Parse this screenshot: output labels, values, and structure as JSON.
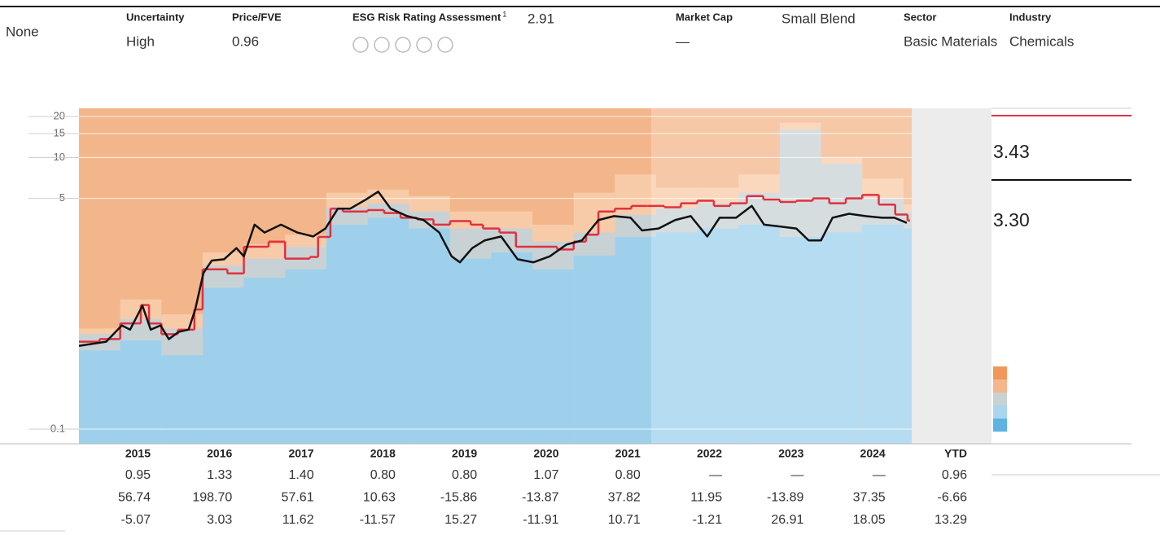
{
  "header": {
    "left": "None",
    "fields": [
      {
        "label": "Uncertainty",
        "value": "High"
      },
      {
        "label": "Price/FVE",
        "value": "0.96"
      },
      {
        "label": "ESG Risk Rating Assessment",
        "sup": "1",
        "aside": "2.91"
      },
      {
        "label": "Market Cap",
        "value": "—",
        "aside": "Small Blend"
      },
      {
        "label": "Sector",
        "value": "Basic Materials"
      },
      {
        "label": "Industry",
        "value": "Chemicals"
      }
    ]
  },
  "chart_data": {
    "type": "line",
    "log_scale": true,
    "xlim": [
      2015,
      2025.1
    ],
    "ylim": [
      0.078,
      23
    ],
    "yticks": [
      0.1,
      5,
      10,
      15,
      20
    ],
    "grid": true,
    "series": [
      {
        "kind": "area",
        "color": "#f8cba8",
        "x": [
          2015,
          2015.5,
          2016,
          2016.5,
          2017,
          2017.5,
          2018,
          2018.5,
          2019,
          2019.5,
          2020,
          2020.5,
          2021,
          2021.5,
          2022,
          2022.5,
          2023,
          2023.5,
          2024,
          2024.5,
          2025
        ],
        "values": [
          0.55,
          0.9,
          0.7,
          2.0,
          2.3,
          2.7,
          5.5,
          5.8,
          5.2,
          4.0,
          4.0,
          3.2,
          5.5,
          7.5,
          6.0,
          6.0,
          7.5,
          18,
          10,
          7,
          4.5
        ]
      },
      {
        "kind": "area",
        "color": "#c8d2d5",
        "x": [
          2015,
          2015.5,
          2016,
          2016.5,
          2017,
          2017.5,
          2018,
          2018.5,
          2019,
          2019.5,
          2020,
          2020.5,
          2021,
          2021.5,
          2022,
          2022.5,
          2023,
          2023.5,
          2024,
          2024.5,
          2025
        ],
        "values": [
          0.5,
          0.65,
          0.55,
          1.6,
          1.8,
          2.2,
          4.3,
          4.6,
          4.0,
          3.0,
          3.0,
          2.4,
          2.8,
          3.8,
          4.2,
          4.6,
          5.5,
          16,
          9,
          5,
          4.0
        ]
      },
      {
        "kind": "area",
        "color": "#9ed0ec",
        "x": [
          2015,
          2015.5,
          2016,
          2016.5,
          2017,
          2017.5,
          2018,
          2018.5,
          2019,
          2019.5,
          2020,
          2020.5,
          2021,
          2021.5,
          2022,
          2022.5,
          2023,
          2023.5,
          2024,
          2024.5,
          2025
        ],
        "values": [
          0.38,
          0.45,
          0.35,
          1.1,
          1.3,
          1.5,
          3.2,
          3.6,
          3.0,
          1.8,
          2.0,
          1.5,
          1.9,
          2.6,
          2.8,
          3.0,
          3.2,
          2.6,
          2.8,
          3.2,
          3.0
        ]
      },
      {
        "kind": "step",
        "color": "#e0313f",
        "end_label": "3.43",
        "x": [
          2015,
          2015.25,
          2015.5,
          2015.75,
          2015.85,
          2016,
          2016.2,
          2016.4,
          2016.5,
          2016.8,
          2017,
          2017.3,
          2017.5,
          2017.8,
          2017.9,
          2018.05,
          2018.2,
          2018.5,
          2018.7,
          2018.9,
          2019.1,
          2019.3,
          2019.5,
          2019.75,
          2019.9,
          2020.1,
          2020.3,
          2020.5,
          2020.8,
          2021,
          2021.15,
          2021.3,
          2021.5,
          2021.7,
          2021.9,
          2022.1,
          2022.3,
          2022.5,
          2022.7,
          2022.9,
          2023.1,
          2023.3,
          2023.5,
          2023.7,
          2023.9,
          2024.1,
          2024.3,
          2024.5,
          2024.7,
          2024.9,
          2025.05
        ],
        "values": [
          0.44,
          0.46,
          0.6,
          0.82,
          0.6,
          0.5,
          0.54,
          0.76,
          1.5,
          1.4,
          2.2,
          2.4,
          1.8,
          1.85,
          2.6,
          4.2,
          4.0,
          4.1,
          3.9,
          3.6,
          3.5,
          3.2,
          3.4,
          3.2,
          3.0,
          2.8,
          2.2,
          2.2,
          2.1,
          2.4,
          2.7,
          4.0,
          4.2,
          4.4,
          4.4,
          4.3,
          4.6,
          4.8,
          4.4,
          4.6,
          5.2,
          4.9,
          4.7,
          4.8,
          5.0,
          4.6,
          5.0,
          5.3,
          4.5,
          3.8,
          3.43
        ]
      },
      {
        "kind": "line",
        "color": "#111111",
        "end_label": "3.30",
        "x": [
          2015,
          2015.33,
          2015.52,
          2015.62,
          2015.77,
          2015.87,
          2015.99,
          2016.09,
          2016.21,
          2016.33,
          2016.41,
          2016.51,
          2016.61,
          2016.76,
          2016.91,
          2017,
          2017.13,
          2017.25,
          2017.45,
          2017.65,
          2017.84,
          2017.99,
          2018.14,
          2018.29,
          2018.48,
          2018.63,
          2018.78,
          2018.98,
          2019.18,
          2019.37,
          2019.52,
          2019.62,
          2019.77,
          2019.92,
          2020.12,
          2020.32,
          2020.51,
          2020.71,
          2020.91,
          2021.1,
          2021.3,
          2021.49,
          2021.69,
          2021.83,
          2022.03,
          2022.23,
          2022.42,
          2022.62,
          2022.77,
          2022.97,
          2023.16,
          2023.31,
          2023.51,
          2023.7,
          2023.85,
          2024,
          2024.14,
          2024.34,
          2024.54,
          2024.74,
          2024.89,
          2025.04
        ],
        "values": [
          0.41,
          0.44,
          0.58,
          0.54,
          0.81,
          0.54,
          0.58,
          0.46,
          0.52,
          0.54,
          0.76,
          1.41,
          1.74,
          1.78,
          2.15,
          1.87,
          3.2,
          2.8,
          3.2,
          2.8,
          2.62,
          3.0,
          4.2,
          4.2,
          4.9,
          5.6,
          4.2,
          3.7,
          3.46,
          2.8,
          1.87,
          1.69,
          2.15,
          2.45,
          2.62,
          1.78,
          1.69,
          1.87,
          2.28,
          2.45,
          3.46,
          3.7,
          3.6,
          2.9,
          3.0,
          3.46,
          3.7,
          2.62,
          3.6,
          3.6,
          4.4,
          3.2,
          3.1,
          3.0,
          2.45,
          2.45,
          3.6,
          3.85,
          3.7,
          3.6,
          3.6,
          3.3
        ]
      }
    ]
  },
  "table": {
    "header": [
      "2015",
      "2016",
      "2017",
      "2018",
      "2019",
      "2020",
      "2021",
      "2022",
      "2023",
      "2024",
      "YTD"
    ],
    "rows": [
      [
        "0.95",
        "1.33",
        "1.40",
        "0.80",
        "0.80",
        "1.07",
        "0.80",
        "—",
        "—",
        "—",
        "0.96"
      ],
      [
        "56.74",
        "198.70",
        "57.61",
        "10.63",
        "-15.86",
        "-13.87",
        "37.82",
        "11.95",
        "-13.89",
        "37.35",
        "-6.66"
      ],
      [
        "-5.07",
        "3.03",
        "11.62",
        "-11.57",
        "15.27",
        "-11.91",
        "10.71",
        "-1.21",
        "26.91",
        "18.05",
        "13.29"
      ]
    ]
  }
}
